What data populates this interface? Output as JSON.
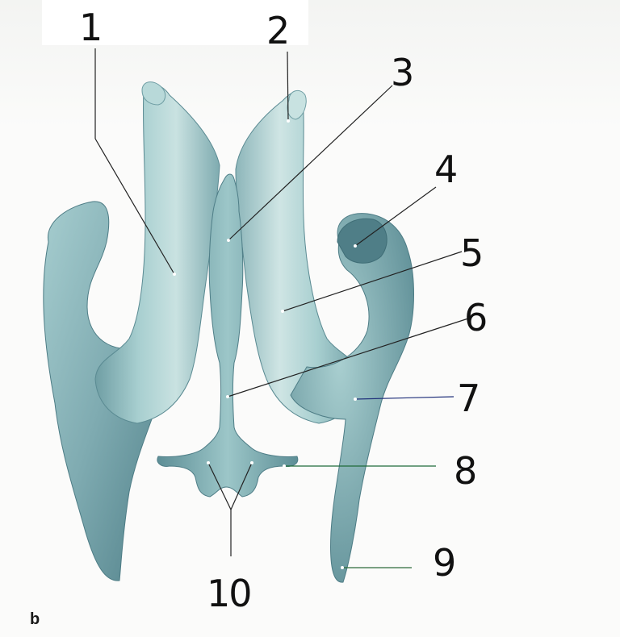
{
  "figure": {
    "panel_letter": "b",
    "labels": [
      {
        "id": "1",
        "text": "1"
      },
      {
        "id": "2",
        "text": "2"
      },
      {
        "id": "3",
        "text": "3"
      },
      {
        "id": "4",
        "text": "4"
      },
      {
        "id": "5",
        "text": "5"
      },
      {
        "id": "6",
        "text": "6"
      },
      {
        "id": "7",
        "text": "7"
      },
      {
        "id": "8",
        "text": "8"
      },
      {
        "id": "9",
        "text": "9"
      },
      {
        "id": "10",
        "text": "10"
      }
    ]
  },
  "colors": {
    "structure_fill": "#9fc6c8",
    "structure_shadow": "#5f8f96",
    "structure_highlight": "#d8ebea",
    "leader_line": "#222222",
    "leader_line_blue": "#1f2f7a",
    "leader_line_green": "#2e6b3a"
  }
}
